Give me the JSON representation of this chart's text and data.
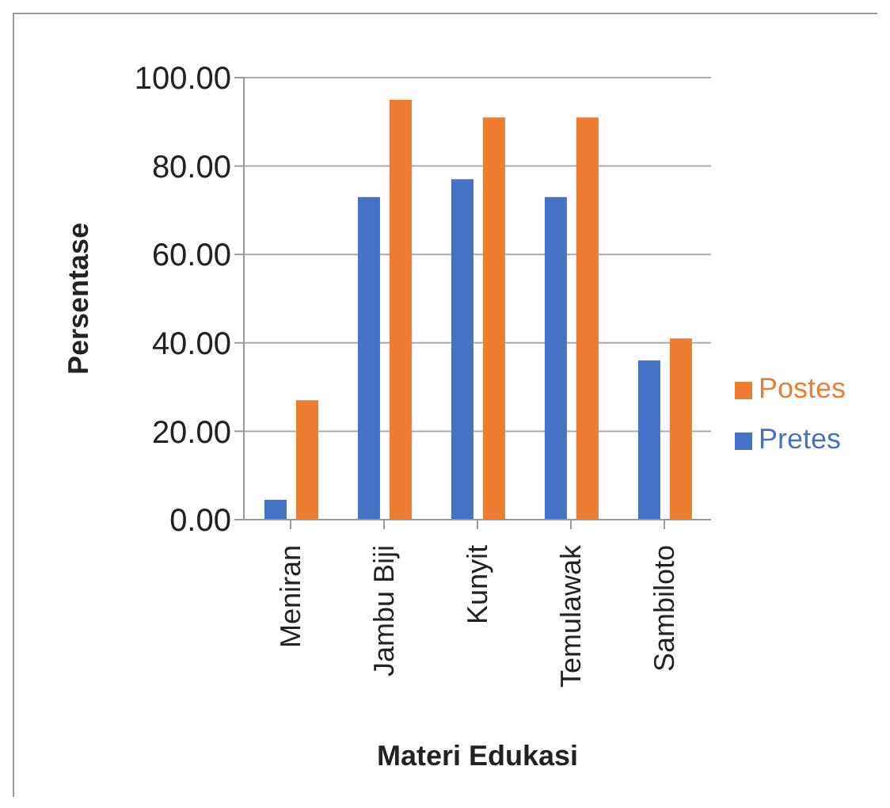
{
  "chart_data": {
    "type": "bar",
    "categories": [
      "Meniran",
      "Jambu Biji",
      "Kunyit",
      "Temulawak",
      "Sambiloto"
    ],
    "series": [
      {
        "name": "Pretes",
        "color": "#4472c4",
        "values": [
          4.5,
          73,
          77,
          73,
          36
        ]
      },
      {
        "name": "Postes",
        "color": "#ed7d31",
        "values": [
          27,
          95,
          91,
          91,
          41
        ]
      }
    ],
    "xlabel": "Materi Edukasi",
    "ylabel": "Persentase",
    "ylim": [
      0,
      100
    ],
    "yticks": [
      {
        "value": 0,
        "label": "0.00"
      },
      {
        "value": 20,
        "label": "20.00"
      },
      {
        "value": 40,
        "label": "40.00"
      },
      {
        "value": 60,
        "label": "60.00"
      },
      {
        "value": 80,
        "label": "80.00"
      },
      {
        "value": 100,
        "label": "100.00"
      }
    ],
    "grid": "y",
    "legend": "right"
  }
}
